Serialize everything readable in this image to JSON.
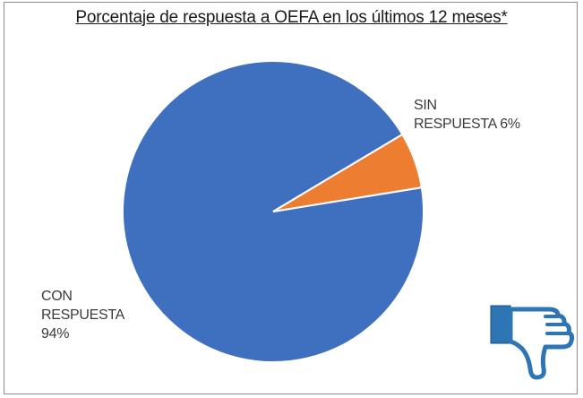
{
  "chart_data": {
    "type": "pie",
    "title": "Porcentaje de respuesta a OEFA en los últimos 12 meses*",
    "slices": [
      {
        "label_line1": "CON",
        "label_line2": "RESPUESTA",
        "label_line3": "94%",
        "value": 94,
        "color": "#3f6fbf"
      },
      {
        "label_line1": "SIN",
        "label_line2": "RESPUESTA 6%",
        "value": 6,
        "color": "#ed7d31"
      }
    ]
  },
  "icon": {
    "name": "thumbs-down-icon",
    "color": "#2e75b6"
  }
}
